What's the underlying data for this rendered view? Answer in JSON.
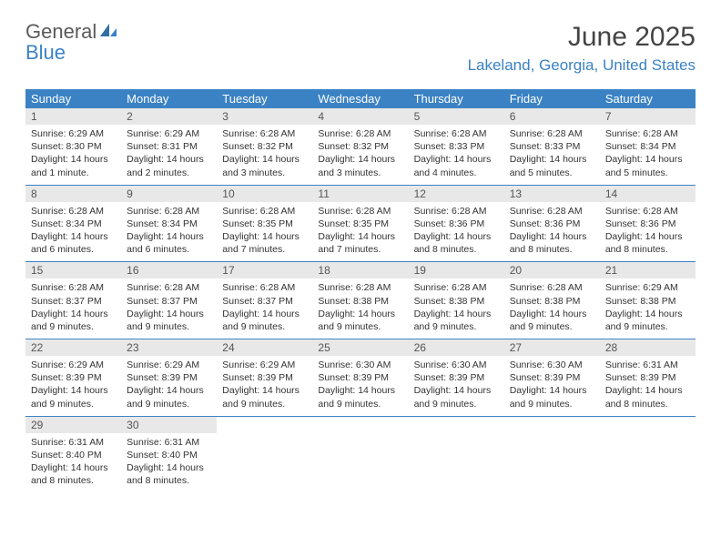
{
  "logo": {
    "general": "General",
    "blue": "Blue"
  },
  "title": "June 2025",
  "location": "Lakeland, Georgia, United States",
  "colors": {
    "accent": "#3b82c4",
    "daynum_bg": "#e8e8e8",
    "text": "#333333",
    "logo_gray": "#5a5a5a"
  },
  "weekdays": [
    "Sunday",
    "Monday",
    "Tuesday",
    "Wednesday",
    "Thursday",
    "Friday",
    "Saturday"
  ],
  "days": [
    {
      "n": "1",
      "sunrise": "6:29 AM",
      "sunset": "8:30 PM",
      "daylight": "14 hours and 1 minute."
    },
    {
      "n": "2",
      "sunrise": "6:29 AM",
      "sunset": "8:31 PM",
      "daylight": "14 hours and 2 minutes."
    },
    {
      "n": "3",
      "sunrise": "6:28 AM",
      "sunset": "8:32 PM",
      "daylight": "14 hours and 3 minutes."
    },
    {
      "n": "4",
      "sunrise": "6:28 AM",
      "sunset": "8:32 PM",
      "daylight": "14 hours and 3 minutes."
    },
    {
      "n": "5",
      "sunrise": "6:28 AM",
      "sunset": "8:33 PM",
      "daylight": "14 hours and 4 minutes."
    },
    {
      "n": "6",
      "sunrise": "6:28 AM",
      "sunset": "8:33 PM",
      "daylight": "14 hours and 5 minutes."
    },
    {
      "n": "7",
      "sunrise": "6:28 AM",
      "sunset": "8:34 PM",
      "daylight": "14 hours and 5 minutes."
    },
    {
      "n": "8",
      "sunrise": "6:28 AM",
      "sunset": "8:34 PM",
      "daylight": "14 hours and 6 minutes."
    },
    {
      "n": "9",
      "sunrise": "6:28 AM",
      "sunset": "8:34 PM",
      "daylight": "14 hours and 6 minutes."
    },
    {
      "n": "10",
      "sunrise": "6:28 AM",
      "sunset": "8:35 PM",
      "daylight": "14 hours and 7 minutes."
    },
    {
      "n": "11",
      "sunrise": "6:28 AM",
      "sunset": "8:35 PM",
      "daylight": "14 hours and 7 minutes."
    },
    {
      "n": "12",
      "sunrise": "6:28 AM",
      "sunset": "8:36 PM",
      "daylight": "14 hours and 8 minutes."
    },
    {
      "n": "13",
      "sunrise": "6:28 AM",
      "sunset": "8:36 PM",
      "daylight": "14 hours and 8 minutes."
    },
    {
      "n": "14",
      "sunrise": "6:28 AM",
      "sunset": "8:36 PM",
      "daylight": "14 hours and 8 minutes."
    },
    {
      "n": "15",
      "sunrise": "6:28 AM",
      "sunset": "8:37 PM",
      "daylight": "14 hours and 9 minutes."
    },
    {
      "n": "16",
      "sunrise": "6:28 AM",
      "sunset": "8:37 PM",
      "daylight": "14 hours and 9 minutes."
    },
    {
      "n": "17",
      "sunrise": "6:28 AM",
      "sunset": "8:37 PM",
      "daylight": "14 hours and 9 minutes."
    },
    {
      "n": "18",
      "sunrise": "6:28 AM",
      "sunset": "8:38 PM",
      "daylight": "14 hours and 9 minutes."
    },
    {
      "n": "19",
      "sunrise": "6:28 AM",
      "sunset": "8:38 PM",
      "daylight": "14 hours and 9 minutes."
    },
    {
      "n": "20",
      "sunrise": "6:28 AM",
      "sunset": "8:38 PM",
      "daylight": "14 hours and 9 minutes."
    },
    {
      "n": "21",
      "sunrise": "6:29 AM",
      "sunset": "8:38 PM",
      "daylight": "14 hours and 9 minutes."
    },
    {
      "n": "22",
      "sunrise": "6:29 AM",
      "sunset": "8:39 PM",
      "daylight": "14 hours and 9 minutes."
    },
    {
      "n": "23",
      "sunrise": "6:29 AM",
      "sunset": "8:39 PM",
      "daylight": "14 hours and 9 minutes."
    },
    {
      "n": "24",
      "sunrise": "6:29 AM",
      "sunset": "8:39 PM",
      "daylight": "14 hours and 9 minutes."
    },
    {
      "n": "25",
      "sunrise": "6:30 AM",
      "sunset": "8:39 PM",
      "daylight": "14 hours and 9 minutes."
    },
    {
      "n": "26",
      "sunrise": "6:30 AM",
      "sunset": "8:39 PM",
      "daylight": "14 hours and 9 minutes."
    },
    {
      "n": "27",
      "sunrise": "6:30 AM",
      "sunset": "8:39 PM",
      "daylight": "14 hours and 9 minutes."
    },
    {
      "n": "28",
      "sunrise": "6:31 AM",
      "sunset": "8:39 PM",
      "daylight": "14 hours and 8 minutes."
    },
    {
      "n": "29",
      "sunrise": "6:31 AM",
      "sunset": "8:40 PM",
      "daylight": "14 hours and 8 minutes."
    },
    {
      "n": "30",
      "sunrise": "6:31 AM",
      "sunset": "8:40 PM",
      "daylight": "14 hours and 8 minutes."
    }
  ],
  "layout": {
    "start_weekday": 0,
    "labels": {
      "sunrise": "Sunrise:",
      "sunset": "Sunset:",
      "daylight": "Daylight:"
    }
  }
}
